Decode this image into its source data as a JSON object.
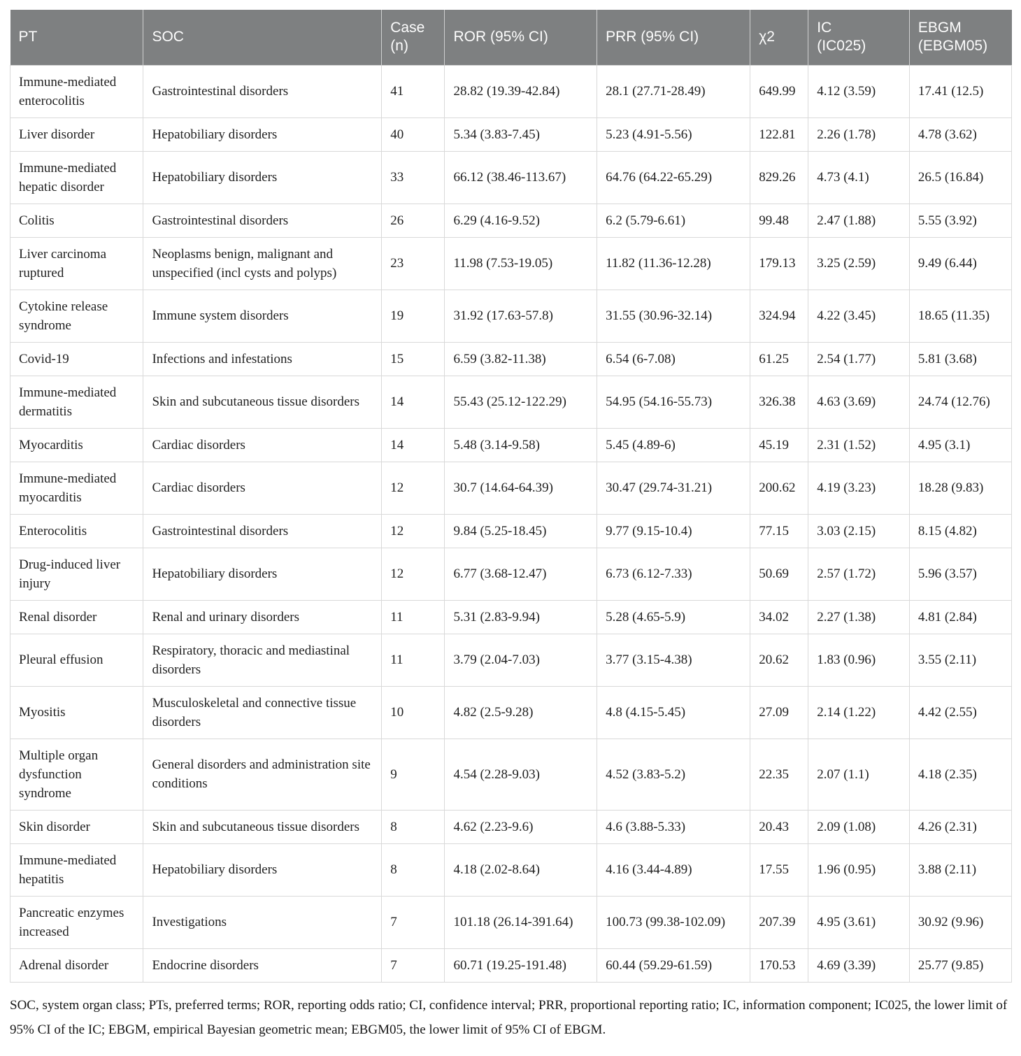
{
  "table": {
    "columns": [
      "PT",
      "SOC",
      "Case\n(n)",
      "ROR (95% CI)",
      "PRR (95% CI)",
      "χ2",
      "IC\n(IC025)",
      "EBGM\n(EBGM05)"
    ],
    "rows": [
      [
        "Immune-mediated enterocolitis",
        "Gastrointestinal disorders",
        "41",
        "28.82 (19.39-42.84)",
        "28.1 (27.71-28.49)",
        "649.99",
        "4.12 (3.59)",
        "17.41 (12.5)"
      ],
      [
        "Liver disorder",
        "Hepatobiliary disorders",
        "40",
        "5.34 (3.83-7.45)",
        "5.23 (4.91-5.56)",
        "122.81",
        "2.26 (1.78)",
        "4.78 (3.62)"
      ],
      [
        "Immune-mediated hepatic disorder",
        "Hepatobiliary disorders",
        "33",
        "66.12 (38.46-113.67)",
        "64.76 (64.22-65.29)",
        "829.26",
        "4.73 (4.1)",
        "26.5 (16.84)"
      ],
      [
        "Colitis",
        "Gastrointestinal disorders",
        "26",
        "6.29 (4.16-9.52)",
        "6.2 (5.79-6.61)",
        "99.48",
        "2.47 (1.88)",
        "5.55 (3.92)"
      ],
      [
        "Liver carcinoma ruptured",
        "Neoplasms benign, malignant and unspecified (incl cysts and polyps)",
        "23",
        "11.98 (7.53-19.05)",
        "11.82 (11.36-12.28)",
        "179.13",
        "3.25 (2.59)",
        "9.49 (6.44)"
      ],
      [
        "Cytokine release syndrome",
        "Immune system disorders",
        "19",
        "31.92 (17.63-57.8)",
        "31.55 (30.96-32.14)",
        "324.94",
        "4.22 (3.45)",
        "18.65 (11.35)"
      ],
      [
        "Covid-19",
        "Infections and infestations",
        "15",
        "6.59 (3.82-11.38)",
        "6.54 (6-7.08)",
        "61.25",
        "2.54 (1.77)",
        "5.81 (3.68)"
      ],
      [
        "Immune-mediated dermatitis",
        "Skin and subcutaneous tissue disorders",
        "14",
        "55.43 (25.12-122.29)",
        "54.95 (54.16-55.73)",
        "326.38",
        "4.63 (3.69)",
        "24.74 (12.76)"
      ],
      [
        "Myocarditis",
        "Cardiac disorders",
        "14",
        "5.48 (3.14-9.58)",
        "5.45 (4.89-6)",
        "45.19",
        "2.31 (1.52)",
        "4.95 (3.1)"
      ],
      [
        "Immune-mediated myocarditis",
        "Cardiac disorders",
        "12",
        "30.7 (14.64-64.39)",
        "30.47 (29.74-31.21)",
        "200.62",
        "4.19 (3.23)",
        "18.28 (9.83)"
      ],
      [
        "Enterocolitis",
        "Gastrointestinal disorders",
        "12",
        "9.84 (5.25-18.45)",
        "9.77 (9.15-10.4)",
        "77.15",
        "3.03 (2.15)",
        "8.15 (4.82)"
      ],
      [
        "Drug-induced liver injury",
        "Hepatobiliary disorders",
        "12",
        "6.77 (3.68-12.47)",
        "6.73 (6.12-7.33)",
        "50.69",
        "2.57 (1.72)",
        "5.96 (3.57)"
      ],
      [
        "Renal disorder",
        "Renal and urinary disorders",
        "11",
        "5.31 (2.83-9.94)",
        "5.28 (4.65-5.9)",
        "34.02",
        "2.27 (1.38)",
        "4.81 (2.84)"
      ],
      [
        "Pleural effusion",
        "Respiratory, thoracic and mediastinal disorders",
        "11",
        "3.79 (2.04-7.03)",
        "3.77 (3.15-4.38)",
        "20.62",
        "1.83 (0.96)",
        "3.55 (2.11)"
      ],
      [
        "Myositis",
        "Musculoskeletal and connective tissue disorders",
        "10",
        "4.82 (2.5-9.28)",
        "4.8 (4.15-5.45)",
        "27.09",
        "2.14 (1.22)",
        "4.42 (2.55)"
      ],
      [
        "Multiple organ dysfunction syndrome",
        "General disorders and administration site conditions",
        "9",
        "4.54 (2.28-9.03)",
        "4.52 (3.83-5.2)",
        "22.35",
        "2.07 (1.1)",
        "4.18 (2.35)"
      ],
      [
        "Skin disorder",
        "Skin and subcutaneous tissue disorders",
        "8",
        "4.62 (2.23-9.6)",
        "4.6 (3.88-5.33)",
        "20.43",
        "2.09 (1.08)",
        "4.26 (2.31)"
      ],
      [
        "Immune-mediated hepatitis",
        "Hepatobiliary disorders",
        "8",
        "4.18 (2.02-8.64)",
        "4.16 (3.44-4.89)",
        "17.55",
        "1.96 (0.95)",
        "3.88 (2.11)"
      ],
      [
        "Pancreatic enzymes increased",
        "Investigations",
        "7",
        "101.18 (26.14-391.64)",
        "100.73 (99.38-102.09)",
        "207.39",
        "4.95 (3.61)",
        "30.92 (9.96)"
      ],
      [
        "Adrenal disorder",
        "Endocrine disorders",
        "7",
        "60.71 (19.25-191.48)",
        "60.44 (59.29-61.59)",
        "170.53",
        "4.69 (3.39)",
        "25.77 (9.85)"
      ]
    ]
  },
  "footnote": "SOC, system organ class; PTs, preferred terms; ROR, reporting odds ratio; CI, confidence interval; PRR, proportional reporting ratio; IC, information component; IC025, the lower limit of 95% CI of the IC; EBGM, empirical Bayesian geometric mean; EBGM05, the lower limit of 95% CI of EBGM.",
  "colors": {
    "header_bg": "#7e8081",
    "header_text": "#fdfdfd",
    "border": "#d9d9d9",
    "body_text": "#1f1f1f"
  }
}
